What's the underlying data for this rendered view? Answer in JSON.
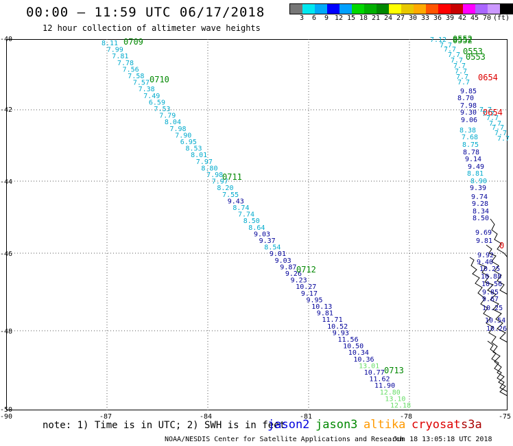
{
  "title": "00:00 – 11:59 UTC 06/17/2018",
  "subtitle": "12 hour collection of altimeter wave heights",
  "colorbar": {
    "colors": [
      "#777777",
      "#00e8f0",
      "#00aaf8",
      "#0000ff",
      "#00a0ff",
      "#00d800",
      "#00b000",
      "#008800",
      "#ffff00",
      "#e8c800",
      "#ffaa00",
      "#ff5500",
      "#ff0000",
      "#c80000",
      "#ff00ff",
      "#aa66ff",
      "#cc99ff",
      "#000000"
    ],
    "labels": [
      "3",
      "6",
      "9",
      "12",
      "15",
      "18",
      "21",
      "24",
      "27",
      "30",
      "33",
      "36",
      "39",
      "42",
      "45",
      "70",
      "(ft)"
    ]
  },
  "lat_labels": [
    "-40",
    "-42",
    "-44",
    "-46",
    "-48",
    "-50"
  ],
  "lon_labels": [
    "-90",
    "-87",
    "-84",
    "-81",
    "-78",
    "-75"
  ],
  "note": "note:  1) Time is in UTC;  2) SWH is in feet",
  "satellites": [
    {
      "name": "jason2",
      "color": "#0000dd"
    },
    {
      "name": "jason3",
      "color": "#008800"
    },
    {
      "name": "altika",
      "color": "#ff9900"
    },
    {
      "name": "cryosat",
      "color": "#dd0000"
    },
    {
      "name": "s3a",
      "color": "#aa0000"
    }
  ],
  "footer_left": "NOAA/NESDIS Center for Satellite Applications and Research",
  "footer_right": "Jun 18 13:05:18 UTC 2018",
  "colors": {
    "light_blue": "#00aacc",
    "dark_blue": "#000099",
    "green": "#008800",
    "light_green": "#66dd66",
    "red": "#dd0000"
  },
  "track1_values": [
    "8.11",
    "7.99",
    "7.81",
    "7.78",
    "7.56",
    "7.58",
    "7.57",
    "7.38",
    "7.49",
    "6.59",
    "7.53",
    "7.79",
    "8.04",
    "7.98",
    "7.90",
    "6.95",
    "8.53",
    "8.01",
    "7.97",
    "8.80",
    "7.98",
    "7.97",
    "8.20",
    "7.55",
    "9.43",
    "8.74",
    "7.74",
    "8.50",
    "8.64",
    "9.03",
    "9.37",
    "8.54",
    "9.01",
    "9.03",
    "9.87",
    "9.26",
    "9.23",
    "10.27",
    "9.17",
    "9.95",
    "10.13",
    "9.81",
    "11.71",
    "10.52",
    "9.93",
    "11.56",
    "10.50",
    "10.34",
    "10.36",
    "13.01",
    "10.77",
    "11.62",
    "11.90",
    "12.80",
    "13.10",
    "12.18"
  ],
  "track1_times": [
    "0709",
    "0710",
    "0711",
    "0712",
    "0713"
  ],
  "track2_values": [
    "7.12",
    "9.85",
    "8.70",
    "7.98",
    "9.30",
    "9.06",
    "8.38",
    "7.68",
    "8.75",
    "8.78",
    "9.14",
    "9.49",
    "8.81",
    "8.90",
    "9.39",
    "9.74",
    "9.28",
    "8.34",
    "8.50",
    "9.69",
    "9.81",
    "9.92",
    "9.40",
    "10.25",
    "10.88",
    "10.56",
    "9.85",
    "9.67",
    "10.25",
    "10.54",
    "10.26"
  ],
  "track2_times": [
    "0552",
    "0552",
    "0553",
    "0553"
  ],
  "track3_times": [
    "0654",
    "0654",
    "0"
  ]
}
